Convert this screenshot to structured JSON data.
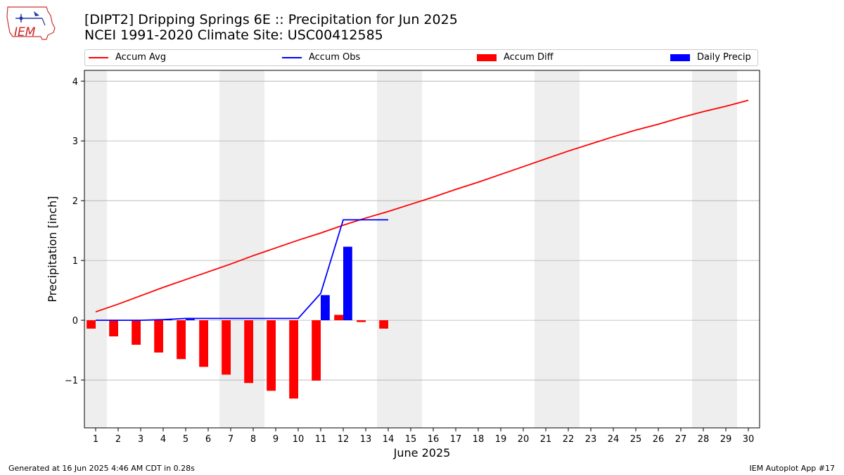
{
  "header": {
    "title_line1": "[DIPT2] Dripping Springs 6E :: Precipitation for Jun 2025",
    "title_line2": "NCEI 1991-2020 Climate Site: USC00412585",
    "logo_text": "IEM"
  },
  "legend": {
    "accum_avg": "Accum Avg",
    "accum_obs": "Accum Obs",
    "accum_diff": "Accum Diff",
    "daily_precip": "Daily Precip"
  },
  "footer": {
    "generated": "Generated at 16 Jun 2025 4:46 AM CDT in 0.28s",
    "app": "IEM Autoplot App #17"
  },
  "colors": {
    "avg": "#ff0000",
    "obs": "#0000ff",
    "diff": "#ff0000",
    "precip": "#0000ff",
    "weekend_shade": "#eeeeee",
    "grid": "#b0b0b0"
  },
  "chart_data": {
    "type": "bar",
    "xlabel": "June 2025",
    "ylabel": "Precipitation [inch]",
    "xlim": [
      0.5,
      30.5
    ],
    "ylim": [
      -1.8,
      4.18
    ],
    "x_ticks": [
      1,
      2,
      3,
      4,
      5,
      6,
      7,
      8,
      9,
      10,
      11,
      12,
      13,
      14,
      15,
      16,
      17,
      18,
      19,
      20,
      21,
      22,
      23,
      24,
      25,
      26,
      27,
      28,
      29,
      30
    ],
    "y_ticks": [
      -1,
      0,
      1,
      2,
      3,
      4
    ],
    "y_tick_labels": [
      "−1",
      "0",
      "1",
      "2",
      "3",
      "4"
    ],
    "grid": "horizontal",
    "legend_position": "top",
    "weekend_shading": [
      [
        0.5,
        1.5
      ],
      [
        6.5,
        8.5
      ],
      [
        13.5,
        15.5
      ],
      [
        20.5,
        22.5
      ],
      [
        27.5,
        29.5
      ]
    ],
    "series": [
      {
        "name": "Accum Avg",
        "kind": "line",
        "x": [
          1,
          2,
          3,
          4,
          5,
          6,
          7,
          8,
          9,
          10,
          11,
          12,
          13,
          14,
          15,
          16,
          17,
          18,
          19,
          20,
          21,
          22,
          23,
          24,
          25,
          26,
          27,
          28,
          29,
          30
        ],
        "values": [
          0.14,
          0.27,
          0.41,
          0.55,
          0.68,
          0.81,
          0.94,
          1.08,
          1.21,
          1.34,
          1.46,
          1.59,
          1.71,
          1.82,
          1.94,
          2.06,
          2.19,
          2.31,
          2.44,
          2.57,
          2.7,
          2.83,
          2.95,
          3.07,
          3.18,
          3.28,
          3.39,
          3.49,
          3.58,
          3.68
        ]
      },
      {
        "name": "Accum Obs",
        "kind": "line",
        "x": [
          1,
          2,
          3,
          4,
          5,
          6,
          7,
          8,
          9,
          10,
          11,
          12,
          13,
          14
        ],
        "values": [
          0.0,
          0.0,
          0.0,
          0.01,
          0.03,
          0.03,
          0.03,
          0.03,
          0.03,
          0.03,
          0.45,
          1.68,
          1.68,
          1.68
        ]
      },
      {
        "name": "Accum Diff",
        "kind": "bar",
        "x": [
          1,
          2,
          3,
          4,
          5,
          6,
          7,
          8,
          9,
          10,
          11,
          12,
          13,
          14
        ],
        "values": [
          -0.14,
          -0.27,
          -0.41,
          -0.54,
          -0.65,
          -0.78,
          -0.91,
          -1.05,
          -1.18,
          -1.31,
          -1.01,
          0.09,
          -0.03,
          -0.14
        ]
      },
      {
        "name": "Daily Precip",
        "kind": "bar",
        "x": [
          1,
          2,
          3,
          4,
          5,
          6,
          7,
          8,
          9,
          10,
          11,
          12,
          13,
          14
        ],
        "values": [
          0.0,
          0.0,
          0.0,
          0.01,
          0.02,
          0.0,
          0.0,
          0.0,
          0.0,
          0.0,
          0.42,
          1.23,
          0.0,
          0.0
        ]
      }
    ]
  }
}
